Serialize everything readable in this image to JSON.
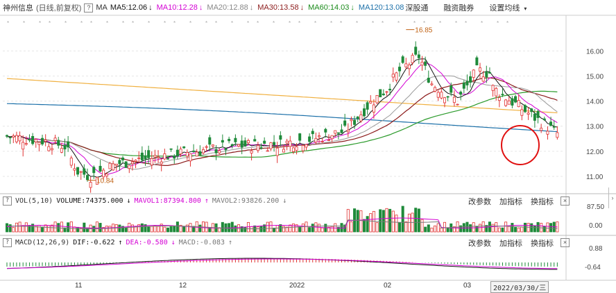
{
  "header": {
    "stock_name": "神州信息",
    "period": "(日线,前复权)",
    "help_label": "?",
    "ma_label": "MA",
    "indicators": [
      {
        "text": "MA5:12.06",
        "arrow": "↓",
        "color": "#111111",
        "arrow_color": "#111111"
      },
      {
        "text": "MA10:12.28",
        "arrow": "↓",
        "color": "#d400d4",
        "arrow_color": "#d400d4"
      },
      {
        "text": "MA20:12.88",
        "arrow": "↓",
        "color": "#888888",
        "arrow_color": "#888888"
      },
      {
        "text": "MA30:13.58",
        "arrow": "↓",
        "color": "#8b1a1a",
        "arrow_color": "#8b1a1a"
      },
      {
        "text": "MA60:14.03",
        "arrow": "↓",
        "color": "#1a8a1a",
        "arrow_color": "#1a8a1a"
      },
      {
        "text": "MA120:13.08",
        "arrow": "",
        "color": "#1a6fa8",
        "arrow_color": "#1a6fa8"
      }
    ],
    "menu": [
      "深股通",
      "融资融券",
      "设置均线"
    ],
    "dropdown_icon": "caret-down-icon"
  },
  "volume_panel": {
    "label": "VOL(5,10)",
    "volume": "VOLUME:74375.000",
    "vol_arrow": "↓",
    "mavol1": "MAVOL1:87394.800",
    "mavol1_arrow": "↑",
    "mavol2": "MAVOL2:93826.200",
    "mavol2_arrow": "↓",
    "tools": [
      "改参数",
      "加指标",
      "换指标"
    ],
    "close": "×",
    "y_labels": [
      "87.50",
      "0.00"
    ]
  },
  "macd_panel": {
    "label": "MACD(12,26,9)",
    "dif": "DIF:-0.622",
    "dif_arrow": "↑",
    "dea": "DEA:-0.580",
    "dea_arrow": "↓",
    "macd": "MACD:-0.083",
    "macd_arrow": "↑",
    "tools": [
      "改参数",
      "加指标",
      "换指标"
    ],
    "close": "×",
    "y_labels": [
      "0.88",
      "-0.64"
    ]
  },
  "x_axis": {
    "labels": [
      "11",
      "12",
      "2022",
      "02",
      "03"
    ],
    "cursor_date": "2022/03/30/三"
  },
  "annotations": {
    "high": "16.85",
    "low": "10.84"
  },
  "colors": {
    "up": "#e03030",
    "down": "#1f8a3a",
    "ma5": "#111111",
    "ma10": "#d400d4",
    "ma20": "#999999",
    "ma30": "#8b1a1a",
    "ma60": "#2a9a2a",
    "ma120": "#1a6fa8",
    "ma250": "#f0b040"
  },
  "chart_data": {
    "type": "candlestick",
    "price_ylim": [
      10.5,
      17.2
    ],
    "price_ticks": [
      11,
      12,
      13,
      14,
      15,
      16
    ],
    "price_tick_labels": [
      "11.00",
      "12.00",
      "13.00",
      "14.00",
      "15.00",
      "16.00"
    ],
    "high_marker": 16.85,
    "low_marker": 10.84,
    "ma_latest": {
      "MA5": 12.06,
      "MA10": 12.28,
      "MA20": 12.88,
      "MA30": 13.58,
      "MA60": 14.03,
      "MA120": 13.08
    }
  }
}
